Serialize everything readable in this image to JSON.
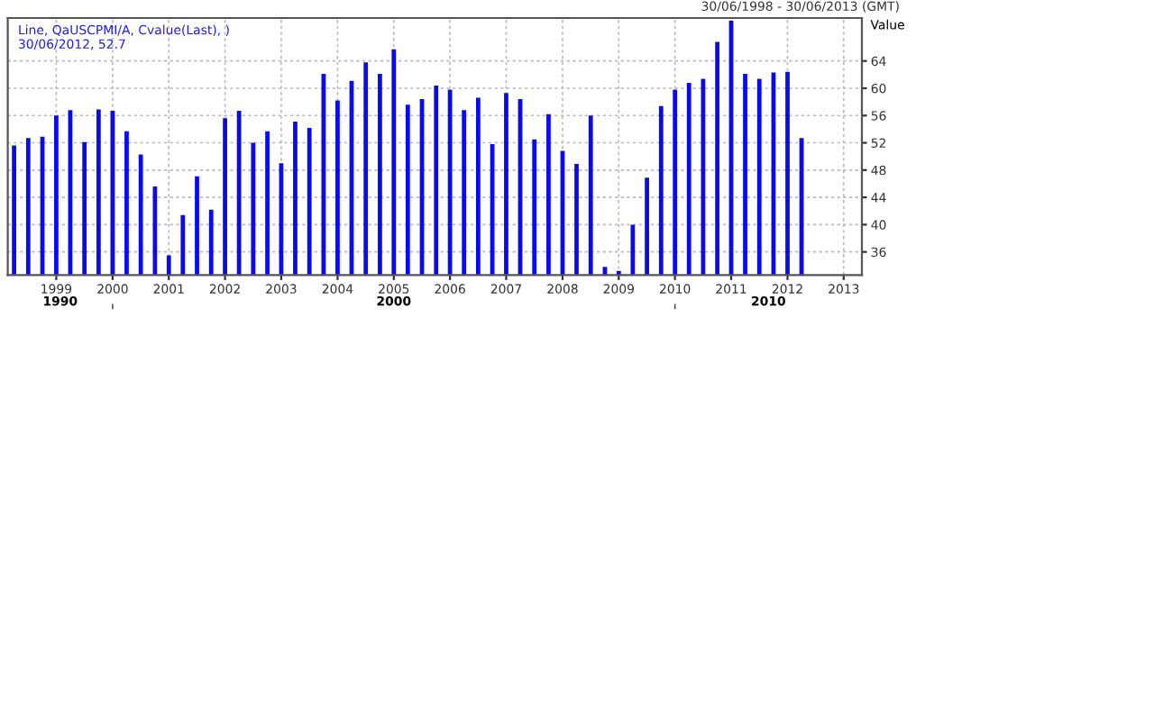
{
  "chart_data": {
    "type": "bar",
    "ylabel": "Value",
    "annotations": [
      "30/06/1998 - 30/06/2013 (GMT)",
      "Line, QaUSCPMI/A, Cvalue(Last), )",
      "30/06/2012, 52.7",
      "1990",
      "2000",
      "2010"
    ],
    "x": [
      "1998-06-30",
      "1998-09-30",
      "1998-12-31",
      "1999-03-31",
      "1999-06-30",
      "1999-09-30",
      "1999-12-31",
      "2000-03-31",
      "2000-06-30",
      "2000-09-30",
      "2000-12-31",
      "2001-03-31",
      "2001-06-30",
      "2001-09-30",
      "2001-12-31",
      "2002-03-31",
      "2002-06-30",
      "2002-09-30",
      "2002-12-31",
      "2003-03-31",
      "2003-06-30",
      "2003-09-30",
      "2003-12-31",
      "2004-03-31",
      "2004-06-30",
      "2004-09-30",
      "2004-12-31",
      "2005-03-31",
      "2005-06-30",
      "2005-09-30",
      "2005-12-31",
      "2006-03-31",
      "2006-06-30",
      "2006-09-30",
      "2006-12-31",
      "2007-03-31",
      "2007-06-30",
      "2007-09-30",
      "2007-12-31",
      "2008-03-31",
      "2008-06-30",
      "2008-09-30",
      "2008-12-31",
      "2009-03-31",
      "2009-06-30",
      "2009-09-30",
      "2009-12-31",
      "2010-03-31",
      "2010-06-30",
      "2010-09-30",
      "2010-12-31",
      "2011-03-31",
      "2011-06-30",
      "2011-09-30",
      "2011-12-31",
      "2012-03-31",
      "2012-06-30"
    ],
    "series": [
      {
        "color": "#0a0af0",
        "values": [
          51.6,
          52.7,
          52.9,
          56.0,
          56.8,
          52.1,
          56.9,
          56.7,
          53.7,
          50.3,
          45.6,
          35.5,
          41.4,
          47.1,
          42.2,
          55.6,
          56.7,
          52.0,
          53.7,
          49.0,
          55.1,
          54.2,
          62.1,
          58.2,
          61.1,
          63.8,
          62.1,
          65.7,
          57.6,
          58.4,
          60.4,
          59.8,
          56.8,
          58.6,
          51.8,
          59.3,
          58.4,
          52.5,
          56.2,
          50.8,
          48.9,
          56.0,
          33.8,
          33.2,
          40.0,
          46.9,
          57.4,
          59.8,
          60.8,
          61.4,
          66.8,
          69.9,
          62.1,
          61.4,
          62.3,
          62.4,
          52.7
        ]
      }
    ],
    "xlim": [
      "1998-05-20",
      "2013-07-27"
    ],
    "xticks": [
      {
        "value": "1999-03-31",
        "label": "1999"
      },
      {
        "value": "2000-03-31",
        "label": "2000"
      },
      {
        "value": "2001-03-31",
        "label": "2001"
      },
      {
        "value": "2002-03-31",
        "label": "2002"
      },
      {
        "value": "2003-03-31",
        "label": "2003"
      },
      {
        "value": "2004-03-31",
        "label": "2004"
      },
      {
        "value": "2005-03-31",
        "label": "2005"
      },
      {
        "value": "2006-03-31",
        "label": "2006"
      },
      {
        "value": "2007-03-31",
        "label": "2007"
      },
      {
        "value": "2008-03-31",
        "label": "2008"
      },
      {
        "value": "2009-03-31",
        "label": "2009"
      },
      {
        "value": "2010-03-31",
        "label": "2010"
      },
      {
        "value": "2011-03-31",
        "label": "2011"
      },
      {
        "value": "2012-03-31",
        "label": "2012"
      },
      {
        "value": "2013-03-31",
        "label": "2013"
      }
    ],
    "ylim": [
      32.6,
      70.3
    ],
    "yticks": [
      36,
      40,
      44,
      48,
      52,
      56,
      60,
      64
    ],
    "grid": true
  }
}
